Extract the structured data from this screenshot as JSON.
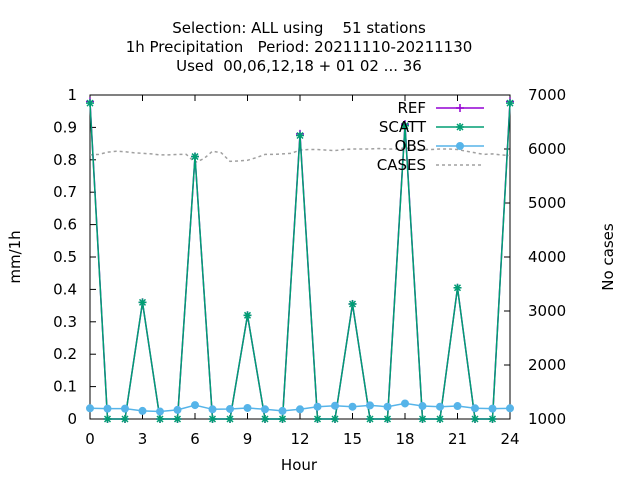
{
  "chart_data": {
    "type": "line",
    "title_lines": [
      "Selection: ALL using    51 stations",
      "1h Precipitation   Period: 20211110-20211130",
      "Used  00,06,12,18 + 01 02 ... 36"
    ],
    "xlabel": "Hour",
    "ylabel": "mm/1h",
    "y2label": "No cases",
    "xlim": [
      0,
      24
    ],
    "ylim": [
      0,
      1
    ],
    "y2lim": [
      1000,
      7000
    ],
    "xticks": [
      "0",
      "3",
      "6",
      "9",
      "12",
      "15",
      "18",
      "21",
      "24"
    ],
    "xtick_values": [
      0,
      3,
      6,
      9,
      12,
      15,
      18,
      21,
      24
    ],
    "yticks": [
      "0",
      "0.1",
      "0.2",
      "0.3",
      "0.4",
      "0.5",
      "0.6",
      "0.7",
      "0.8",
      "0.9",
      "1"
    ],
    "ytick_values": [
      0,
      0.1,
      0.2,
      0.3,
      0.4,
      0.5,
      0.6,
      0.7,
      0.8,
      0.9,
      1.0
    ],
    "y2ticks": [
      "1000",
      "2000",
      "3000",
      "4000",
      "5000",
      "6000",
      "7000"
    ],
    "y2tick_values": [
      1000,
      2000,
      3000,
      4000,
      5000,
      6000,
      7000
    ],
    "legend_position": "top-right",
    "x": [
      0,
      1,
      2,
      3,
      4,
      5,
      6,
      7,
      8,
      9,
      10,
      11,
      12,
      13,
      14,
      15,
      16,
      17,
      18,
      19,
      20,
      21,
      22,
      23,
      24
    ],
    "series": [
      {
        "name": "REF",
        "color": "#9400d3",
        "axis": "y",
        "marker": "plus",
        "values": [
          0.98,
          0,
          0,
          0.36,
          0,
          0,
          0.81,
          0,
          0,
          0.32,
          0,
          0,
          0.88,
          0,
          0,
          0.355,
          0,
          0,
          0.91,
          0,
          0,
          0.405,
          0,
          0,
          0.98
        ]
      },
      {
        "name": "SCATT",
        "color": "#009e73",
        "axis": "y",
        "marker": "star",
        "values": [
          0.975,
          0,
          0,
          0.36,
          0,
          0,
          0.81,
          0,
          0,
          0.32,
          0,
          0,
          0.875,
          0,
          0,
          0.355,
          0,
          0,
          0.905,
          0,
          0,
          0.405,
          0,
          0,
          0.975
        ]
      },
      {
        "name": "OBS",
        "color": "#56b4e9",
        "axis": "y",
        "marker": "circle",
        "values": [
          0.033,
          0.032,
          0.032,
          0.025,
          0.023,
          0.028,
          0.043,
          0.03,
          0.031,
          0.034,
          0.03,
          0.025,
          0.03,
          0.038,
          0.041,
          0.038,
          0.042,
          0.038,
          0.048,
          0.04,
          0.038,
          0.04,
          0.033,
          0.032,
          0.033
        ]
      },
      {
        "name": "CASES",
        "color": "#a0a0a0",
        "axis": "y2",
        "marker": "none",
        "x": [
          0,
          0.5,
          1,
          1.5,
          2,
          2.5,
          3,
          3.5,
          4,
          4.5,
          5,
          5.5,
          6,
          6.5,
          7,
          7.5,
          8,
          8.5,
          9,
          9.5,
          10,
          10.5,
          11,
          11.5,
          12,
          12.5,
          13,
          13.5,
          14,
          14.5,
          15,
          15.5,
          16,
          16.5,
          17,
          17.5,
          18,
          18.5,
          19,
          19.5,
          20,
          20.5,
          21,
          21.5,
          22,
          22.5,
          23,
          23.5,
          24
        ],
        "values": [
          5890,
          5900,
          5940,
          5960,
          5950,
          5930,
          5920,
          5910,
          5890,
          5890,
          5900,
          5900,
          5750,
          5820,
          5960,
          5930,
          5770,
          5780,
          5790,
          5840,
          5900,
          5900,
          5910,
          5920,
          5980,
          5990,
          5990,
          5980,
          5970,
          5990,
          6000,
          6000,
          6000,
          6010,
          6000,
          6000,
          6020,
          6000,
          5990,
          5990,
          6000,
          6000,
          5990,
          5960,
          5930,
          5900,
          5910,
          5890,
          5880
        ]
      }
    ]
  }
}
